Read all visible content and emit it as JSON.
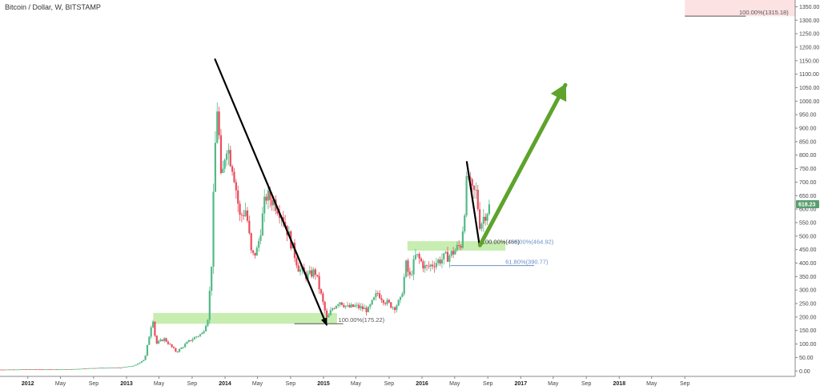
{
  "chart_data": {
    "type": "candlestick",
    "title": "Bitcoin / Dollar, W, BITSTAMP",
    "ylim": [
      -20,
      1375
    ],
    "xlim": [
      "2011-09-20",
      "2019-10-15"
    ],
    "y_ticks": [
      0,
      50,
      100,
      150,
      200,
      250,
      300,
      350,
      400,
      450,
      500,
      550,
      600,
      650,
      700,
      750,
      800,
      850,
      900,
      950,
      1000,
      1050,
      1100,
      1150,
      1200,
      1250,
      1300,
      1350
    ],
    "y_tick_labels": [
      "0.00",
      "50.00",
      "100.00",
      "150.00",
      "200.00",
      "250.00",
      "300.00",
      "350.00",
      "400.00",
      "450.00",
      "500.00",
      "550.00",
      "600.00",
      "650.00",
      "700.00",
      "750.00",
      "800.00",
      "850.00",
      "900.00",
      "950.00",
      "1000.00",
      "1050.00",
      "1100.00",
      "1150.00",
      "1200.00",
      "1250.00",
      "1300.00",
      "1350.00"
    ],
    "x_ticks": [
      {
        "date": "2012-01-01",
        "label": "2012",
        "year": true
      },
      {
        "date": "2012-05-01",
        "label": "May",
        "year": false
      },
      {
        "date": "2012-09-01",
        "label": "Sep",
        "year": false
      },
      {
        "date": "2013-01-01",
        "label": "2013",
        "year": true
      },
      {
        "date": "2013-05-01",
        "label": "May",
        "year": false
      },
      {
        "date": "2013-09-01",
        "label": "Sep",
        "year": false
      },
      {
        "date": "2014-01-01",
        "label": "2014",
        "year": true
      },
      {
        "date": "2014-05-01",
        "label": "May",
        "year": false
      },
      {
        "date": "2014-09-01",
        "label": "Sep",
        "year": false
      },
      {
        "date": "2015-01-01",
        "label": "2015",
        "year": true
      },
      {
        "date": "2015-05-01",
        "label": "May",
        "year": false
      },
      {
        "date": "2015-09-01",
        "label": "Sep",
        "year": false
      },
      {
        "date": "2016-01-01",
        "label": "2016",
        "year": true
      },
      {
        "date": "2016-05-01",
        "label": "May",
        "year": false
      },
      {
        "date": "2016-09-01",
        "label": "Sep",
        "year": false
      },
      {
        "date": "2017-01-01",
        "label": "2017",
        "year": true
      },
      {
        "date": "2017-05-01",
        "label": "May",
        "year": false
      },
      {
        "date": "2017-09-01",
        "label": "Sep",
        "year": false
      },
      {
        "date": "2018-01-01",
        "label": "2018",
        "year": true
      },
      {
        "date": "2018-05-01",
        "label": "May",
        "year": false
      },
      {
        "date": "2018-09-01",
        "label": "Sep",
        "year": false
      }
    ],
    "price_anchors": [
      [
        "2011-09-20",
        5
      ],
      [
        "2012-01-01",
        6
      ],
      [
        "2012-06-01",
        6
      ],
      [
        "2012-09-01",
        11
      ],
      [
        "2012-12-15",
        13
      ],
      [
        "2013-02-01",
        20
      ],
      [
        "2013-03-10",
        45
      ],
      [
        "2013-04-08",
        200
      ],
      [
        "2013-04-20",
        100
      ],
      [
        "2013-05-20",
        120
      ],
      [
        "2013-07-05",
        70
      ],
      [
        "2013-08-20",
        110
      ],
      [
        "2013-09-20",
        130
      ],
      [
        "2013-10-10",
        140
      ],
      [
        "2013-10-30",
        200
      ],
      [
        "2013-11-12",
        400
      ],
      [
        "2013-11-24",
        800
      ],
      [
        "2013-12-04",
        1000
      ],
      [
        "2013-12-18",
        680
      ],
      [
        "2014-01-05",
        850
      ],
      [
        "2014-02-01",
        750
      ],
      [
        "2014-02-25",
        570
      ],
      [
        "2014-03-20",
        600
      ],
      [
        "2014-04-10",
        420
      ],
      [
        "2014-05-01",
        450
      ],
      [
        "2014-06-01",
        650
      ],
      [
        "2014-07-01",
        630
      ],
      [
        "2014-08-01",
        580
      ],
      [
        "2014-09-01",
        480
      ],
      [
        "2014-10-01",
        380
      ],
      [
        "2014-11-01",
        350
      ],
      [
        "2014-12-01",
        370
      ],
      [
        "2015-01-14",
        190
      ],
      [
        "2015-02-01",
        230
      ],
      [
        "2015-03-01",
        260
      ],
      [
        "2015-04-01",
        235
      ],
      [
        "2015-05-01",
        240
      ],
      [
        "2015-06-15",
        225
      ],
      [
        "2015-07-20",
        290
      ],
      [
        "2015-08-15",
        260
      ],
      [
        "2015-09-20",
        235
      ],
      [
        "2015-10-15",
        265
      ],
      [
        "2015-11-04",
        400
      ],
      [
        "2015-11-15",
        340
      ],
      [
        "2015-12-10",
        430
      ],
      [
        "2016-01-15",
        380
      ],
      [
        "2016-02-15",
        400
      ],
      [
        "2016-03-15",
        415
      ],
      [
        "2016-04-15",
        430
      ],
      [
        "2016-05-25",
        470
      ],
      [
        "2016-06-05",
        580
      ],
      [
        "2016-06-18",
        740
      ],
      [
        "2016-07-01",
        660
      ],
      [
        "2016-07-20",
        660
      ],
      [
        "2016-08-03",
        540
      ],
      [
        "2016-08-20",
        580
      ],
      [
        "2016-09-12",
        618
      ]
    ],
    "last_price": {
      "value": 618.23,
      "label": "618.23"
    },
    "zones": [
      {
        "x0": "2013-04-10",
        "x1": "2015-02-20",
        "y0": 175,
        "y1": 215,
        "color": "#c7edb1"
      },
      {
        "x0": "2015-11-08",
        "x1": "2016-11-05",
        "y0": 446,
        "y1": 481,
        "color": "#c7edb1"
      },
      {
        "x0": "2018-09-01",
        "x1": "2019-10-15",
        "y0": 1315,
        "y1": 1375,
        "color": "#fde2e4"
      }
    ],
    "trend_lines": [
      {
        "from": [
          "2013-11-25",
          1155
        ],
        "to": [
          "2015-01-12",
          172
        ],
        "color": "#000000",
        "arrow": true
      },
      {
        "from": [
          "2016-06-15",
          775
        ],
        "to": [
          "2016-08-01",
          466
        ],
        "color": "#000000",
        "arrow": false
      },
      {
        "from": [
          "2016-08-03",
          466
        ],
        "to": [
          "2017-06-15",
          1060
        ],
        "color": "#5ea32c",
        "arrow": true
      }
    ],
    "fib_levels": [
      {
        "text": "100.00%(175.22)",
        "value": 175.22,
        "x0": "2014-09-15",
        "x1": "2015-03-15",
        "text_x": "2015-02-25",
        "color": "#555555"
      },
      {
        "text": "100.00%(466)",
        "value": 466,
        "x0": "2016-08-03",
        "x1": "2016-08-03",
        "text_x": "2016-08-10",
        "color": "#333333"
      },
      {
        "text": "50.00%(464.92)",
        "value": 464.92,
        "x0": "2016-12-01",
        "x1": "2016-12-01",
        "text_x": "2016-11-25",
        "color": "#6b8fc7"
      },
      {
        "text": "61.80%(390.77)",
        "value": 390.77,
        "x0": "2016-04-15",
        "x1": "2017-02-20",
        "text_x": "2016-11-05",
        "color": "#6b8fc7"
      },
      {
        "text": "100.00%(1315.18)",
        "value": 1315.18,
        "x0": "2018-09-01",
        "x1": "2019-04-15",
        "text_x": "2019-04-20",
        "color": "#555555"
      }
    ]
  }
}
